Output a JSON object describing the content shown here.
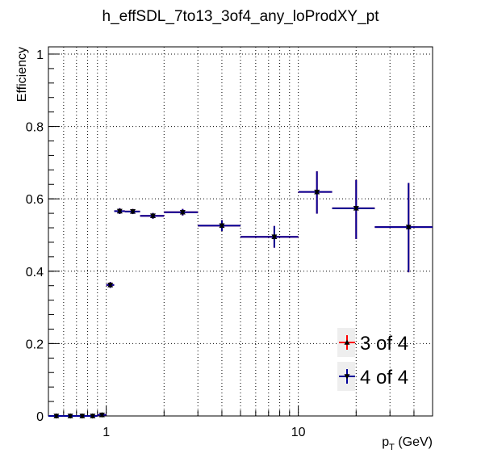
{
  "chart_data": {
    "type": "scatter",
    "title": "h_effSDL_7to13_3of4_any_loProdXY_pt",
    "xlabel": "p_T (GeV)",
    "ylabel": "Efficiency",
    "xscale": "log",
    "xlim": [
      0.5,
      50
    ],
    "ylim": [
      0,
      1.02
    ],
    "grid": true,
    "yticks": [
      0,
      0.2,
      0.4,
      0.6,
      0.8,
      1
    ],
    "ytick_labels": [
      "0",
      "0.2",
      "0.4",
      "0.6",
      "0.8",
      "1"
    ],
    "xtick_labels": [
      {
        "value": 1,
        "label": "1"
      },
      {
        "value": 10,
        "label": "10"
      }
    ],
    "legend_position": "bottom-right",
    "series": [
      {
        "name": "3 of 4",
        "color": "#ff0000",
        "marker": "triangle-up",
        "points": [
          {
            "x": 0.55,
            "xlo": 0.5,
            "xhi": 0.6,
            "y": 0.0,
            "elo": 0.0,
            "ehi": 0.004
          },
          {
            "x": 0.65,
            "xlo": 0.6,
            "xhi": 0.7,
            "y": 0.0,
            "elo": 0.0,
            "ehi": 0.004
          },
          {
            "x": 0.75,
            "xlo": 0.7,
            "xhi": 0.8,
            "y": 0.0,
            "elo": 0.0,
            "ehi": 0.004
          },
          {
            "x": 0.85,
            "xlo": 0.8,
            "xhi": 0.9,
            "y": 0.0,
            "elo": 0.0,
            "ehi": 0.004
          },
          {
            "x": 0.95,
            "xlo": 0.9,
            "xhi": 1.0,
            "y": 0.003,
            "elo": 0.003,
            "ehi": 0.004
          },
          {
            "x": 1.05,
            "xlo": 1.0,
            "xhi": 1.1,
            "y": 0.362,
            "elo": 0.008,
            "ehi": 0.008
          },
          {
            "x": 1.175,
            "xlo": 1.1,
            "xhi": 1.25,
            "y": 0.566,
            "elo": 0.008,
            "ehi": 0.008
          },
          {
            "x": 1.375,
            "xlo": 1.25,
            "xhi": 1.5,
            "y": 0.565,
            "elo": 0.007,
            "ehi": 0.007
          },
          {
            "x": 1.75,
            "xlo": 1.5,
            "xhi": 2.0,
            "y": 0.553,
            "elo": 0.008,
            "ehi": 0.008
          },
          {
            "x": 2.5,
            "xlo": 2.0,
            "xhi": 3.0,
            "y": 0.563,
            "elo": 0.009,
            "ehi": 0.009
          },
          {
            "x": 4.0,
            "xlo": 3.0,
            "xhi": 5.0,
            "y": 0.526,
            "elo": 0.015,
            "ehi": 0.015
          },
          {
            "x": 7.5,
            "xlo": 5.0,
            "xhi": 10.0,
            "y": 0.495,
            "elo": 0.03,
            "ehi": 0.03
          },
          {
            "x": 12.5,
            "xlo": 10.0,
            "xhi": 15.0,
            "y": 0.619,
            "elo": 0.06,
            "ehi": 0.057
          },
          {
            "x": 20.0,
            "xlo": 15.0,
            "xhi": 25.0,
            "y": 0.574,
            "elo": 0.085,
            "ehi": 0.078
          },
          {
            "x": 37.5,
            "xlo": 25.0,
            "xhi": 50.0,
            "y": 0.522,
            "elo": 0.125,
            "ehi": 0.122
          }
        ]
      },
      {
        "name": "4 of 4",
        "color": "#000099",
        "marker": "triangle-down",
        "points": [
          {
            "x": 0.55,
            "xlo": 0.5,
            "xhi": 0.6,
            "y": 0.0,
            "elo": 0.0,
            "ehi": 0.004
          },
          {
            "x": 0.65,
            "xlo": 0.6,
            "xhi": 0.7,
            "y": 0.0,
            "elo": 0.0,
            "ehi": 0.004
          },
          {
            "x": 0.75,
            "xlo": 0.7,
            "xhi": 0.8,
            "y": 0.0,
            "elo": 0.0,
            "ehi": 0.004
          },
          {
            "x": 0.85,
            "xlo": 0.8,
            "xhi": 0.9,
            "y": 0.0,
            "elo": 0.0,
            "ehi": 0.004
          },
          {
            "x": 0.95,
            "xlo": 0.9,
            "xhi": 1.0,
            "y": 0.003,
            "elo": 0.003,
            "ehi": 0.004
          },
          {
            "x": 1.05,
            "xlo": 1.0,
            "xhi": 1.1,
            "y": 0.362,
            "elo": 0.008,
            "ehi": 0.008
          },
          {
            "x": 1.175,
            "xlo": 1.1,
            "xhi": 1.25,
            "y": 0.566,
            "elo": 0.008,
            "ehi": 0.008
          },
          {
            "x": 1.375,
            "xlo": 1.25,
            "xhi": 1.5,
            "y": 0.565,
            "elo": 0.007,
            "ehi": 0.007
          },
          {
            "x": 1.75,
            "xlo": 1.5,
            "xhi": 2.0,
            "y": 0.553,
            "elo": 0.008,
            "ehi": 0.008
          },
          {
            "x": 2.5,
            "xlo": 2.0,
            "xhi": 3.0,
            "y": 0.563,
            "elo": 0.009,
            "ehi": 0.009
          },
          {
            "x": 4.0,
            "xlo": 3.0,
            "xhi": 5.0,
            "y": 0.526,
            "elo": 0.015,
            "ehi": 0.015
          },
          {
            "x": 7.5,
            "xlo": 5.0,
            "xhi": 10.0,
            "y": 0.495,
            "elo": 0.03,
            "ehi": 0.03
          },
          {
            "x": 12.5,
            "xlo": 10.0,
            "xhi": 15.0,
            "y": 0.619,
            "elo": 0.06,
            "ehi": 0.057
          },
          {
            "x": 20.0,
            "xlo": 15.0,
            "xhi": 25.0,
            "y": 0.574,
            "elo": 0.085,
            "ehi": 0.078
          },
          {
            "x": 37.5,
            "xlo": 25.0,
            "xhi": 50.0,
            "y": 0.522,
            "elo": 0.125,
            "ehi": 0.122
          }
        ]
      }
    ]
  }
}
